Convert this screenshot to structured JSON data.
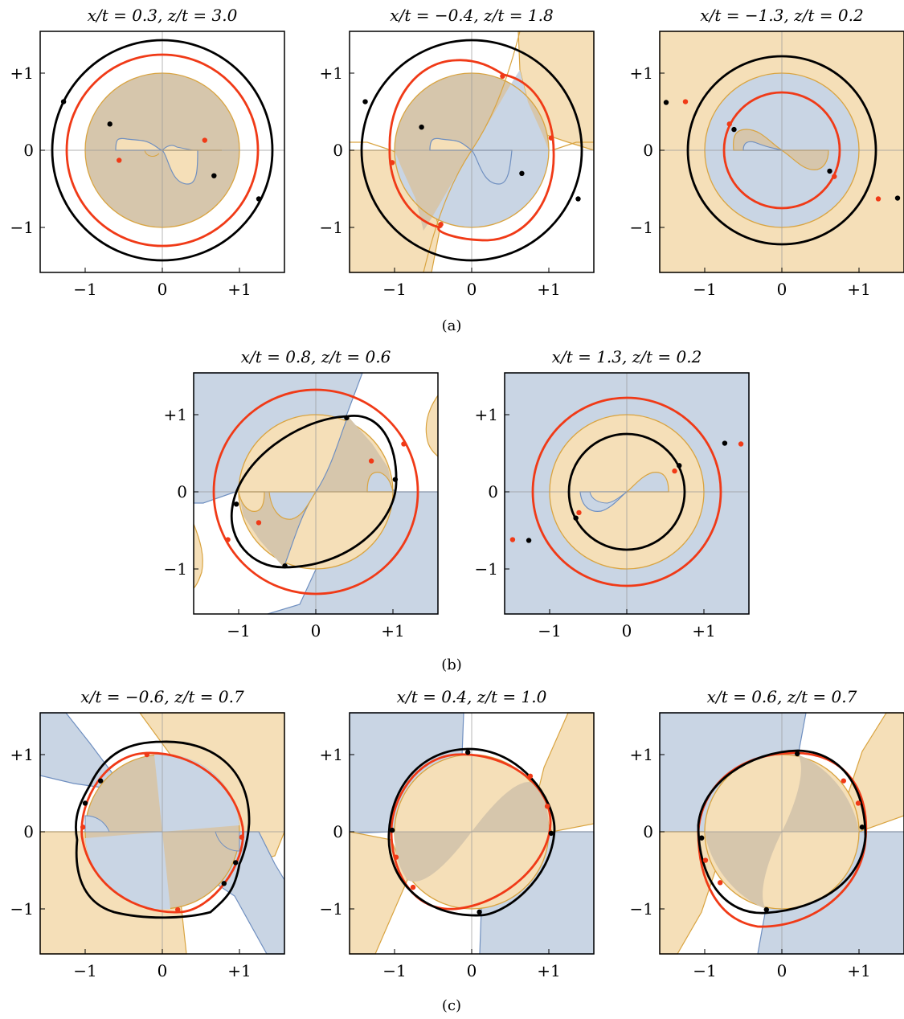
{
  "figure": {
    "colors": {
      "orange_fill": "#f5dfb8",
      "orange_edge": "#d9a441",
      "blue_fill": "#c9d5e4",
      "blue_edge": "#6f8fc0",
      "overlap_fill": "#d6c6ac",
      "black_curve": "#000000",
      "red_curve": "#f03a17"
    },
    "tick_labels": {
      "x": [
        "−1",
        "0",
        "+1"
      ],
      "y": [
        "+1",
        "0",
        "−1"
      ]
    },
    "captions": {
      "a": "(a)",
      "b": "(b)",
      "c": "(c)"
    },
    "panels": [
      {
        "id": "a1",
        "row": "a",
        "title": "x/t = 0.3, z/t = 3.0",
        "background": "none",
        "inner_disk": "overlap",
        "black_circle_radius": 1.37,
        "red_circle_radius": 1.2,
        "black_points": [
          [
            -1.28,
            0.63
          ],
          [
            -0.68,
            0.34
          ],
          [
            0.67,
            -0.33
          ],
          [
            1.25,
            -0.63
          ]
        ],
        "red_points": [
          [
            -0.56,
            -0.13
          ],
          [
            0.55,
            0.13
          ]
        ]
      },
      {
        "id": "a2",
        "row": "a",
        "title": "x/t = −0.4, z/t = 1.8",
        "background": "split-orange-blue",
        "inner_disk": "split-overlap-blue",
        "black_circle_radius": 1.37,
        "red_circle_radius": 1.13,
        "black_points": [
          [
            -1.38,
            0.63
          ],
          [
            -0.65,
            0.3
          ],
          [
            0.65,
            -0.3
          ],
          [
            1.38,
            -0.63
          ]
        ],
        "red_points": [
          [
            0.4,
            0.96
          ],
          [
            1.03,
            0.16
          ],
          [
            -1.03,
            -0.16
          ],
          [
            -0.4,
            -0.96
          ]
        ]
      },
      {
        "id": "a3",
        "row": "a",
        "title": "x/t = −1.3, z/t = 0.2",
        "background": "orange",
        "inner_disk": "blue",
        "black_circle_radius": 1.17,
        "red_circle_radius": 0.72,
        "black_points": [
          [
            -1.5,
            0.62
          ],
          [
            -0.62,
            0.27
          ],
          [
            0.62,
            -0.27
          ],
          [
            1.5,
            -0.62
          ]
        ],
        "red_points": [
          [
            -1.25,
            0.63
          ],
          [
            -0.68,
            0.34
          ],
          [
            0.68,
            -0.34
          ],
          [
            1.25,
            -0.63
          ]
        ]
      },
      {
        "id": "b1",
        "row": "b",
        "title": "x/t = 0.8, z/t = 0.6",
        "background": "split-blue-white",
        "inner_disk": "split-orange-overlap",
        "black_circle_radius": 0.0,
        "red_circle_radius": 1.32,
        "black_points": [
          [
            0.4,
            0.96
          ],
          [
            1.03,
            0.16
          ],
          [
            -1.03,
            -0.16
          ],
          [
            -0.4,
            -0.96
          ]
        ],
        "red_points": [
          [
            1.14,
            0.62
          ],
          [
            0.72,
            0.4
          ],
          [
            -0.74,
            -0.4
          ],
          [
            -1.14,
            -0.62
          ]
        ]
      },
      {
        "id": "b2",
        "row": "b",
        "title": "x/t = 1.3, z/t = 0.2",
        "background": "blue",
        "inner_disk": "orange",
        "black_circle_radius": 0.72,
        "red_circle_radius": 1.17,
        "black_points": [
          [
            1.27,
            0.63
          ],
          [
            0.68,
            0.34
          ],
          [
            -0.66,
            -0.34
          ],
          [
            -1.27,
            -0.63
          ]
        ],
        "red_points": [
          [
            1.48,
            0.62
          ],
          [
            0.62,
            0.27
          ],
          [
            -0.62,
            -0.27
          ],
          [
            -1.48,
            -0.62
          ]
        ]
      },
      {
        "id": "c1",
        "row": "c",
        "title": "x/t = −0.6, z/t = 0.7",
        "background": "mixed",
        "inner_disk": "mixed",
        "black_circle_radius": 0.0,
        "red_circle_radius": 0.0,
        "black_points": [
          [
            -0.8,
            0.66
          ],
          [
            -1.0,
            0.37
          ],
          [
            0.95,
            -0.4
          ],
          [
            0.8,
            -0.67
          ]
        ],
        "red_points": [
          [
            -0.2,
            1.0
          ],
          [
            -1.03,
            0.06
          ],
          [
            1.03,
            -0.07
          ],
          [
            0.2,
            -1.01
          ]
        ]
      },
      {
        "id": "c2",
        "row": "c",
        "title": "x/t = 0.4, z/t = 1.0",
        "background": "mixed",
        "inner_disk": "mixed",
        "black_circle_radius": 0.0,
        "red_circle_radius": 0.0,
        "black_points": [
          [
            -0.05,
            1.03
          ],
          [
            1.03,
            -0.02
          ],
          [
            0.1,
            -1.04
          ],
          [
            -1.03,
            0.02
          ]
        ],
        "red_points": [
          [
            0.76,
            0.72
          ],
          [
            0.98,
            0.33
          ],
          [
            -0.98,
            -0.33
          ],
          [
            -0.76,
            -0.72
          ]
        ]
      },
      {
        "id": "c3",
        "row": "c",
        "title": "x/t = 0.6, z/t = 0.7",
        "background": "mixed",
        "inner_disk": "mixed",
        "black_circle_radius": 0.0,
        "red_circle_radius": 0.0,
        "black_points": [
          [
            0.2,
            1.01
          ],
          [
            1.04,
            0.06
          ],
          [
            -0.2,
            -1.01
          ],
          [
            -1.04,
            -0.08
          ]
        ],
        "red_points": [
          [
            0.8,
            0.66
          ],
          [
            0.99,
            0.37
          ],
          [
            -0.99,
            -0.37
          ],
          [
            -0.8,
            -0.66
          ]
        ]
      }
    ]
  }
}
